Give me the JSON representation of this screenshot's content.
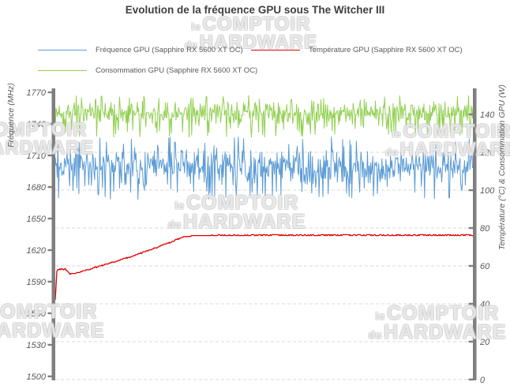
{
  "title": "Evolution de la fréquence GPU sous The Witcher III",
  "watermark": {
    "prefix1": "le",
    "word1": "COMPTOIR",
    "prefix2": "du",
    "word2": "HARDWARE"
  },
  "legend": {
    "items": [
      {
        "label": "Fréquence GPU (Sapphire RX 5600 XT OC)",
        "color": "#5B9BD5"
      },
      {
        "label": "Température GPU (Sapphire RX 5600 XT OC)",
        "color": "#DE0000"
      },
      {
        "label": "Consommation GPU (Sapphire RX 5600 XT OC)",
        "color": "#92D050"
      }
    ]
  },
  "chart_data": {
    "type": "line",
    "title": "Evolution de la fréquence GPU sous The Witcher III",
    "x_axis": {
      "labels_visible": false
    },
    "left_axis": {
      "title": "Fréquence (MHz)",
      "min": 1500,
      "max": 1770,
      "tick_step": 30,
      "ticks": [
        1770,
        1740,
        1710,
        1680,
        1650,
        1620,
        1590,
        1560,
        1530,
        1500
      ]
    },
    "right_axis": {
      "title": "Température (°C) & Consommation GPU (W)",
      "min": 0,
      "max": 150,
      "tick_step": 20,
      "ticks": [
        140,
        120,
        100,
        80,
        60,
        40,
        20,
        0
      ]
    },
    "gridlines": {
      "orientation": "horizontal",
      "style": "dashed",
      "color": "#D9D9D9",
      "at_right_axis_values": [
        140,
        120,
        100,
        80,
        60,
        40,
        20,
        0
      ]
    },
    "axis_bar_color": "#7F7F7F",
    "series": [
      {
        "name": "Fréquence GPU (Sapphire RX 5600 XT OC)",
        "axis": "left",
        "unit": "MHz",
        "color": "#5B9BD5",
        "pattern": "noisy-band",
        "mean": 1699,
        "band_min": 1668,
        "band_max": 1728,
        "points": 640
      },
      {
        "name": "Température GPU (Sapphire RX 5600 XT OC)",
        "axis": "right",
        "unit": "°C",
        "color": "#DE0000",
        "pattern": "anchored",
        "points": 531,
        "anchors": [
          [
            0,
            42
          ],
          [
            0.004,
            57.5
          ],
          [
            0.012,
            58.3
          ],
          [
            0.025,
            58.3
          ],
          [
            0.035,
            55.8
          ],
          [
            0.05,
            56.2
          ],
          [
            0.065,
            57.3
          ],
          [
            0.08,
            58
          ],
          [
            0.1,
            59.5
          ],
          [
            0.13,
            61.5
          ],
          [
            0.16,
            63.5
          ],
          [
            0.19,
            65.5
          ],
          [
            0.22,
            68
          ],
          [
            0.25,
            70.5
          ],
          [
            0.27,
            72
          ],
          [
            0.29,
            74
          ],
          [
            0.305,
            75.3
          ],
          [
            0.33,
            76
          ],
          [
            0.4,
            76.2
          ],
          [
            0.5,
            76.3
          ],
          [
            0.6,
            76.2
          ],
          [
            0.7,
            76.3
          ],
          [
            0.8,
            76.2
          ],
          [
            0.9,
            76.3
          ],
          [
            1,
            76.2
          ]
        ]
      },
      {
        "name": "Consommation GPU (Sapphire RX 5600 XT OC)",
        "axis": "right",
        "unit": "W",
        "color": "#92D050",
        "pattern": "noisy-band",
        "mean": 140.5,
        "band_min": 128,
        "band_max": 150,
        "points": 640
      }
    ]
  }
}
